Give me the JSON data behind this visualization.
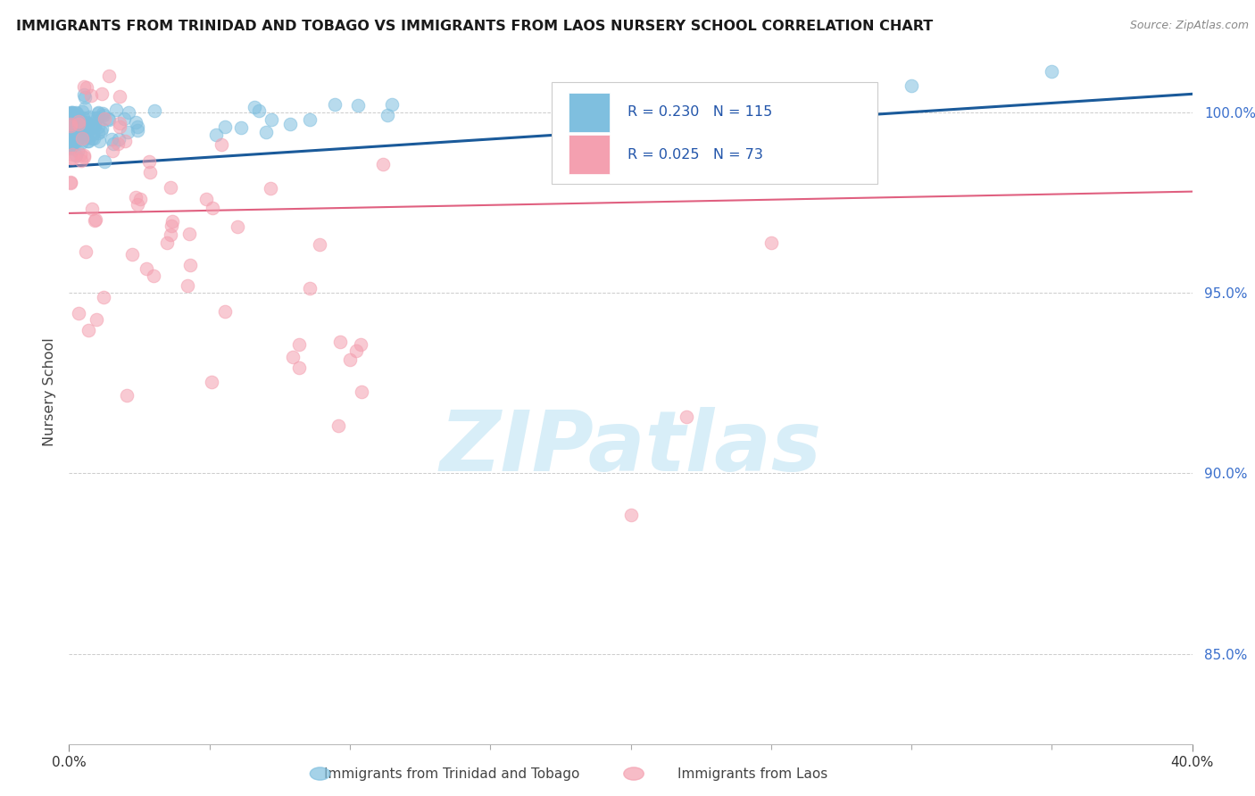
{
  "title": "IMMIGRANTS FROM TRINIDAD AND TOBAGO VS IMMIGRANTS FROM LAOS NURSERY SCHOOL CORRELATION CHART",
  "source": "Source: ZipAtlas.com",
  "ylabel": "Nursery School",
  "y_ticks": [
    100.0,
    95.0,
    90.0,
    85.0
  ],
  "y_tick_labels": [
    "100.0%",
    "95.0%",
    "90.0%",
    "85.0%"
  ],
  "xlim": [
    0.0,
    40.0
  ],
  "ylim": [
    82.5,
    102.0
  ],
  "trinidad_R": 0.23,
  "trinidad_N": 115,
  "laos_R": 0.025,
  "laos_N": 73,
  "legend_label_1": "Immigrants from Trinidad and Tobago",
  "legend_label_2": "Immigrants from Laos",
  "color_trinidad": "#7fbfdf",
  "color_laos": "#f4a0b0",
  "trendline_color_trinidad": "#1a5a9a",
  "trendline_color_laos": "#e06080",
  "watermark": "ZIPatlas",
  "watermark_color": "#d8eef8",
  "grid_color": "#cccccc",
  "background_color": "#ffffff",
  "trendline_tt_y0": 98.5,
  "trendline_tt_y1": 100.5,
  "trendline_laos_y0": 97.2,
  "trendline_laos_y1": 97.8
}
